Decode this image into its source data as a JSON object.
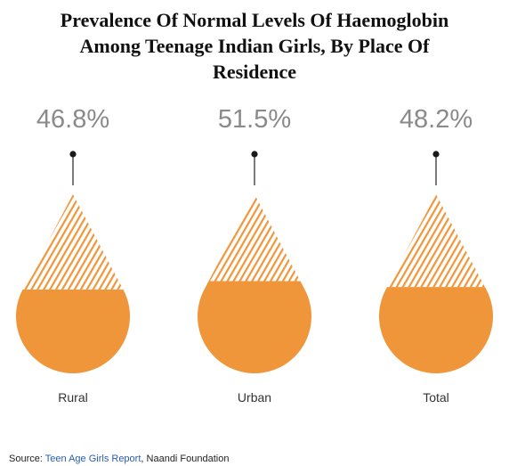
{
  "chart_data": {
    "type": "bar",
    "title_lines": [
      "Prevalence Of Normal Levels Of Haemoglobin",
      "Among Teenage Indian Girls, By Place Of",
      "Residence"
    ],
    "categories": [
      "Rural",
      "Urban",
      "Total"
    ],
    "values": [
      46.8,
      51.5,
      48.2
    ],
    "value_labels": [
      "46.8%",
      "51.5%",
      "48.2%"
    ],
    "unit": "%",
    "ylim": [
      0,
      100
    ],
    "colors": {
      "fill": "#f0963a",
      "hatch": "#f0963a",
      "pin": "#333333",
      "value_text": "#8a8a8a",
      "category_text": "#333333"
    }
  },
  "source": {
    "prefix": "Source: ",
    "report": "Teen Age Girls Report",
    "suffix": ", Naandi Foundation"
  }
}
